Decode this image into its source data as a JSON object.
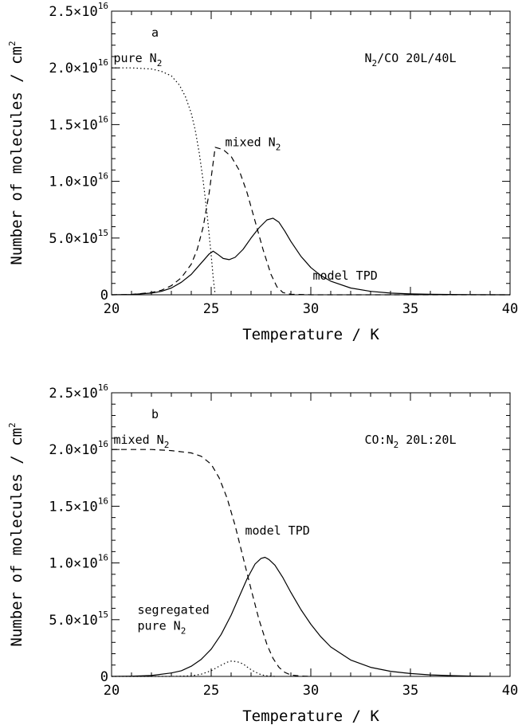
{
  "chart_data": [
    {
      "type": "line",
      "panel_label": "a",
      "sample_label": {
        "text": "N2/CO 20L/40L",
        "parts": [
          "N",
          "2",
          "/CO 20L/40L"
        ]
      },
      "xlabel": "Temperature / K",
      "ylabel": "Number of molecules / cm2",
      "ylabel_parts": [
        "Number of molecules / cm",
        "2"
      ],
      "xlim": [
        20,
        40
      ],
      "ylim": [
        0,
        2.5e+16
      ],
      "xticks": [
        {
          "value": 20,
          "label": "20"
        },
        {
          "value": 25,
          "label": "25"
        },
        {
          "value": 30,
          "label": "30"
        },
        {
          "value": 35,
          "label": "35"
        },
        {
          "value": 40,
          "label": "40"
        }
      ],
      "yticks": [
        {
          "value": 0,
          "label": "0",
          "mantissa": "0",
          "exponent": ""
        },
        {
          "value": 5000000000000000.0,
          "label": "5.0×10^15",
          "mantissa": "5.0×10",
          "exponent": "15"
        },
        {
          "value": 1e+16,
          "label": "1.0×10^16",
          "mantissa": "1.0×10",
          "exponent": "16"
        },
        {
          "value": 1.5e+16,
          "label": "1.5×10^16",
          "mantissa": "1.5×10",
          "exponent": "16"
        },
        {
          "value": 2e+16,
          "label": "2.0×10^16",
          "mantissa": "2.0×10",
          "exponent": "16"
        },
        {
          "value": 2.5e+16,
          "label": "2.5×10^16",
          "mantissa": "2.5×10",
          "exponent": "16"
        }
      ],
      "grid": false,
      "legend": "none",
      "series": [
        {
          "name": "pure N2",
          "name_parts": [
            "pure N",
            "2"
          ],
          "style": "dotted",
          "label_at": [
            20.1,
            2.05e+16
          ],
          "x": [
            20,
            21,
            22,
            22.5,
            23,
            23.4,
            23.7,
            24,
            24.2,
            24.4,
            24.6,
            24.8,
            25,
            25.1,
            25.2
          ],
          "y": [
            2e+16,
            2e+16,
            1.99e+16,
            1.97e+16,
            1.93e+16,
            1.85e+16,
            1.75e+16,
            1.6e+16,
            1.45e+16,
            1.25e+16,
            1e+16,
            7000000000000000.0,
            3500000000000000.0,
            1500000000000000.0,
            0
          ]
        },
        {
          "name": "mixed N2",
          "name_parts": [
            "mixed N",
            "2"
          ],
          "style": "dashed",
          "label_at": [
            25.7,
            1.31e+16
          ],
          "x": [
            20,
            21,
            22,
            22.5,
            23,
            23.5,
            24,
            24.3,
            24.6,
            24.9,
            25.2,
            25.6,
            26,
            26.4,
            26.8,
            27.2,
            27.6,
            28,
            28.3,
            28.6,
            29,
            30,
            40
          ],
          "y": [
            0,
            30000000000000.0,
            200000000000000.0,
            400000000000000.0,
            800000000000000.0,
            1500000000000000.0,
            2700000000000000.0,
            4000000000000000.0,
            6000000000000000.0,
            9000000000000000.0,
            1.3e+16,
            1.28e+16,
            1.22e+16,
            1.1e+16,
            9000000000000000.0,
            6500000000000000.0,
            4000000000000000.0,
            1800000000000000.0,
            700000000000000.0,
            200000000000000.0,
            50000000000000.0,
            0,
            0
          ]
        },
        {
          "name": "model TPD",
          "name_parts": [
            "model TPD",
            ""
          ],
          "style": "solid",
          "label_at": [
            30.1,
            1350000000000000.0
          ],
          "x": [
            20,
            21,
            22,
            22.5,
            23,
            23.5,
            24,
            24.3,
            24.6,
            24.9,
            25.1,
            25.3,
            25.6,
            25.9,
            26.2,
            26.6,
            27,
            27.4,
            27.8,
            28.1,
            28.4,
            28.7,
            29,
            29.5,
            30,
            30.5,
            31,
            32,
            33,
            34,
            35,
            36,
            38,
            40
          ],
          "y": [
            0,
            30000000000000.0,
            150000000000000.0,
            300000000000000.0,
            600000000000000.0,
            1100000000000000.0,
            1800000000000000.0,
            2400000000000000.0,
            3000000000000000.0,
            3600000000000000.0,
            3850000000000000.0,
            3600000000000000.0,
            3200000000000000.0,
            3100000000000000.0,
            3300000000000000.0,
            4000000000000000.0,
            5000000000000000.0,
            5900000000000000.0,
            6600000000000000.0,
            6750000000000000.0,
            6400000000000000.0,
            5600000000000000.0,
            4700000000000000.0,
            3400000000000000.0,
            2400000000000000.0,
            1700000000000000.0,
            1200000000000000.0,
            600000000000000.0,
            300000000000000.0,
            150000000000000.0,
            80000000000000.0,
            40000000000000.0,
            10000000000000.0,
            0
          ]
        }
      ]
    },
    {
      "type": "line",
      "panel_label": "b",
      "sample_label": {
        "text": "CO:N2 20L:20L",
        "parts": [
          "CO:N",
          "2",
          " 20L:20L"
        ]
      },
      "xlabel": "Temperature / K",
      "ylabel": "Number of molecules / cm2",
      "ylabel_parts": [
        "Number of molecules / cm",
        "2"
      ],
      "xlim": [
        20,
        40
      ],
      "ylim": [
        0,
        2.5e+16
      ],
      "xticks": [
        {
          "value": 20,
          "label": "20"
        },
        {
          "value": 25,
          "label": "25"
        },
        {
          "value": 30,
          "label": "30"
        },
        {
          "value": 35,
          "label": "35"
        },
        {
          "value": 40,
          "label": "40"
        }
      ],
      "yticks": [
        {
          "value": 0,
          "label": "0",
          "mantissa": "0",
          "exponent": ""
        },
        {
          "value": 5000000000000000.0,
          "label": "5.0×10^15",
          "mantissa": "5.0×10",
          "exponent": "15"
        },
        {
          "value": 1e+16,
          "label": "1.0×10^16",
          "mantissa": "1.0×10",
          "exponent": "16"
        },
        {
          "value": 1.5e+16,
          "label": "1.5×10^16",
          "mantissa": "1.5×10",
          "exponent": "16"
        },
        {
          "value": 2e+16,
          "label": "2.0×10^16",
          "mantissa": "2.0×10",
          "exponent": "16"
        },
        {
          "value": 2.5e+16,
          "label": "2.5×10^16",
          "mantissa": "2.5×10",
          "exponent": "16"
        }
      ],
      "grid": false,
      "legend": "none",
      "series": [
        {
          "name": "mixed N2",
          "name_parts": [
            "mixed N",
            "2"
          ],
          "style": "dashed",
          "label_at": [
            20.1,
            2.05e+16
          ],
          "x": [
            20,
            22,
            23,
            24,
            24.5,
            25,
            25.4,
            25.8,
            26.2,
            26.6,
            27,
            27.4,
            27.8,
            28.1,
            28.4,
            28.7,
            29,
            29.5,
            30
          ],
          "y": [
            2e+16,
            2e+16,
            1.99e+16,
            1.97e+16,
            1.94e+16,
            1.87e+16,
            1.75e+16,
            1.57e+16,
            1.33e+16,
            1.05e+16,
            7700000000000000.0,
            5000000000000000.0,
            2800000000000000.0,
            1600000000000000.0,
            800000000000000.0,
            350000000000000.0,
            120000000000000.0,
            30000000000000.0,
            0
          ]
        },
        {
          "name": "model TPD",
          "name_parts": [
            "model TPD",
            ""
          ],
          "style": "solid",
          "label_at": [
            26.7,
            1.25e+16
          ],
          "x": [
            20,
            21,
            22,
            23,
            23.5,
            24,
            24.5,
            25,
            25.5,
            26,
            26.4,
            26.8,
            27.2,
            27.5,
            27.7,
            27.9,
            28.2,
            28.6,
            29,
            29.5,
            30,
            30.5,
            31,
            32,
            33,
            34,
            35,
            36,
            37,
            38,
            39
          ],
          "y": [
            0,
            20000000000000.0,
            80000000000000.0,
            300000000000000.0,
            500000000000000.0,
            900000000000000.0,
            1500000000000000.0,
            2400000000000000.0,
            3700000000000000.0,
            5400000000000000.0,
            7000000000000000.0,
            8600000000000000.0,
            9900000000000000.0,
            1.04e+16,
            1.05e+16,
            1.03e+16,
            9800000000000000.0,
            8700000000000000.0,
            7400000000000000.0,
            5900000000000000.0,
            4600000000000000.0,
            3500000000000000.0,
            2600000000000000.0,
            1450000000000000.0,
            800000000000000.0,
            450000000000000.0,
            250000000000000.0,
            130000000000000.0,
            70000000000000.0,
            30000000000000.0,
            10000000000000.0
          ]
        },
        {
          "name": "segregated pure N2",
          "name_parts": [
            "pure N",
            "2"
          ],
          "name_line1": "segregated",
          "style": "dotted",
          "label_at": [
            21.3,
            4100000000000000.0
          ],
          "x": [
            20,
            23,
            24,
            24.5,
            25,
            25.4,
            25.8,
            26,
            26.3,
            26.6,
            26.9,
            27.2,
            27.5,
            27.8,
            28.2
          ],
          "y": [
            0,
            0,
            50000000000000.0,
            200000000000000.0,
            500000000000000.0,
            900000000000000.0,
            1250000000000000.0,
            1350000000000000.0,
            1300000000000000.0,
            1100000000000000.0,
            700000000000000.0,
            400000000000000.0,
            150000000000000.0,
            50000000000000.0,
            0
          ]
        }
      ]
    }
  ]
}
